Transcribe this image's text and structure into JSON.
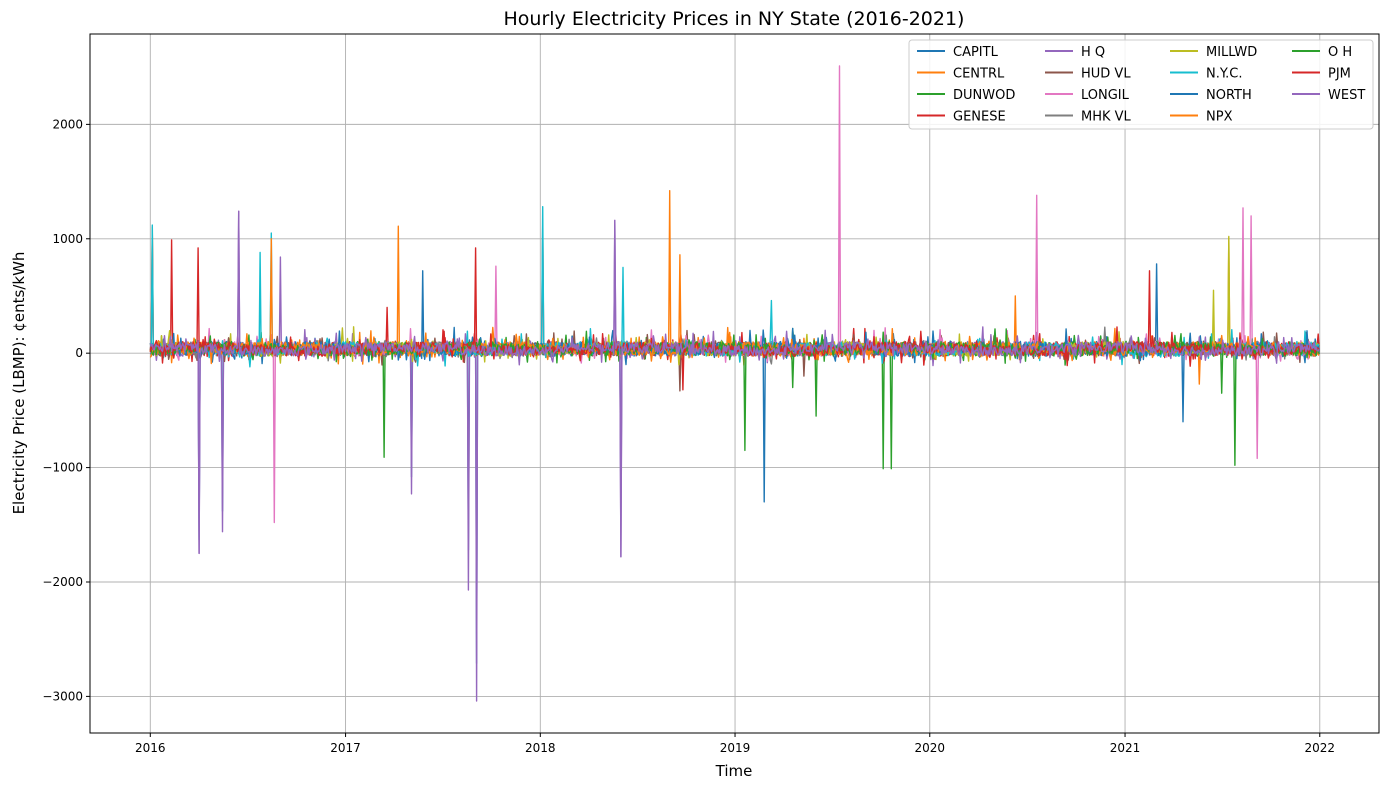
{
  "chart_data": {
    "type": "line",
    "title": "Hourly Electricity Prices in NY State (2016-2021)",
    "xlabel": "Time",
    "ylabel": "Electricity Price (LBMP): ¢ents/kWh",
    "xlim": [
      "2015-09-10",
      "2022-04-22"
    ],
    "ylim": [
      -3320,
      2790
    ],
    "x_ticks": [
      "2016",
      "2017",
      "2018",
      "2019",
      "2020",
      "2021",
      "2022"
    ],
    "y_ticks": [
      2000,
      1000,
      0,
      -1000,
      -2000,
      -3000
    ],
    "y_tick_labels": [
      "2000",
      "1000",
      "0",
      "−1000",
      "−2000",
      "−3000"
    ],
    "grid": true,
    "legend_position": "top-right",
    "legend_columns": 4,
    "series": [
      {
        "name": "CAPITL",
        "color": "#1f77b4",
        "spikes": [
          [
            "2016-04-01",
            -1630
          ],
          [
            "2016-05-15",
            -1380
          ],
          [
            "2017-05-05",
            -1080
          ],
          [
            "2017-08-20",
            -1720
          ],
          [
            "2017-09-03",
            -2710
          ],
          [
            "2018-06-01",
            -1280
          ],
          [
            "2019-02-25",
            -1300
          ],
          [
            "2021-03-01",
            -700
          ],
          [
            "2021-03-01",
            780
          ]
        ]
      },
      {
        "name": "CENTRL",
        "color": "#ff7f0e",
        "spikes": [
          [
            "2016-01-05",
            1100
          ],
          [
            "2017-04-10",
            1110
          ],
          [
            "2018-09-01",
            1420
          ],
          [
            "2020-06-10",
            500
          ],
          [
            "2020-06-10",
            -380
          ],
          [
            "2021-07-15",
            1010
          ],
          [
            "2021-05-20",
            -270
          ]
        ]
      },
      {
        "name": "DUNWOD",
        "color": "#2ca02c",
        "spikes": [
          [
            "2017-03-15",
            -910
          ],
          [
            "2019-01-20",
            -850
          ],
          [
            "2019-10-05",
            -1010
          ],
          [
            "2019-10-20",
            -1010
          ],
          [
            "2019-06-01",
            -550
          ],
          [
            "2021-07-25",
            -980
          ]
        ]
      },
      {
        "name": "GENESE",
        "color": "#d62728",
        "spikes": [
          [
            "2016-01-05",
            1040
          ],
          [
            "2016-02-10",
            990
          ],
          [
            "2016-03-30",
            920
          ],
          [
            "2017-09-01",
            920
          ],
          [
            "2018-01-05",
            1110
          ],
          [
            "2017-03-20",
            400
          ]
        ]
      },
      {
        "name": "H Q",
        "color": "#9467bd",
        "spikes": [
          [
            "2016-06-15",
            1240
          ],
          [
            "2018-05-20",
            1160
          ],
          [
            "2016-09-01",
            840
          ],
          [
            "2018-06-01",
            -1780
          ],
          [
            "2017-05-05",
            -1230
          ],
          [
            "2016-04-01",
            -1750
          ],
          [
            "2016-05-15",
            -1560
          ],
          [
            "2017-08-20",
            -2070
          ],
          [
            "2017-09-03",
            -3040
          ]
        ]
      },
      {
        "name": "HUD VL",
        "color": "#8c564b",
        "spikes": [
          [
            "2018-09-20",
            -330
          ],
          [
            "2019-05-10",
            -200
          ]
        ]
      },
      {
        "name": "LONGIL",
        "color": "#e377c2",
        "spikes": [
          [
            "2019-07-15",
            2510
          ],
          [
            "2020-07-20",
            1380
          ],
          [
            "2021-08-10",
            1270
          ],
          [
            "2021-08-25",
            1200
          ],
          [
            "2016-08-20",
            -1480
          ],
          [
            "2021-08-10",
            -1080
          ],
          [
            "2021-09-05",
            -920
          ],
          [
            "2017-10-10",
            760
          ]
        ]
      },
      {
        "name": "MHK VL",
        "color": "#7f7f7f",
        "spikes": [
          [
            "2018-03-01",
            150
          ]
        ]
      },
      {
        "name": "MILLWD",
        "color": "#bcbd22",
        "spikes": [
          [
            "2021-07-15",
            1020
          ],
          [
            "2021-06-15",
            550
          ]
        ]
      },
      {
        "name": "N.Y.C.",
        "color": "#17becf",
        "spikes": [
          [
            "2016-01-05",
            1120
          ],
          [
            "2016-08-15",
            1050
          ],
          [
            "2018-01-05",
            1280
          ],
          [
            "2016-07-25",
            880
          ],
          [
            "2018-06-05",
            750
          ],
          [
            "2019-03-10",
            460
          ]
        ]
      },
      {
        "name": "NORTH",
        "color": "#1f77b4",
        "spikes": [
          [
            "2017-05-25",
            720
          ],
          [
            "2021-04-20",
            -600
          ]
        ]
      },
      {
        "name": "NPX",
        "color": "#ff7f0e",
        "spikes": [
          [
            "2016-08-15",
            1000
          ],
          [
            "2018-09-20",
            860
          ]
        ]
      },
      {
        "name": "O H",
        "color": "#2ca02c",
        "spikes": [
          [
            "2019-04-20",
            -300
          ],
          [
            "2021-07-01",
            -350
          ]
        ]
      },
      {
        "name": "PJM",
        "color": "#d62728",
        "spikes": [
          [
            "2021-02-15",
            720
          ],
          [
            "2018-09-25",
            -320
          ]
        ]
      },
      {
        "name": "WEST",
        "color": "#9467bd",
        "spikes": [
          [
            "2016-06-15",
            1240
          ],
          [
            "2018-05-20",
            1160
          ],
          [
            "2018-06-01",
            -1780
          ],
          [
            "2016-04-01",
            -1750
          ]
        ]
      }
    ]
  }
}
